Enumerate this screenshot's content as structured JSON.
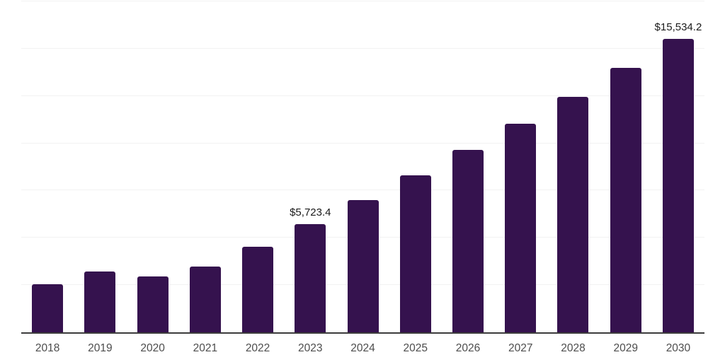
{
  "chart_data": {
    "type": "bar",
    "categories": [
      "2018",
      "2019",
      "2020",
      "2021",
      "2022",
      "2023",
      "2024",
      "2025",
      "2026",
      "2027",
      "2028",
      "2029",
      "2030"
    ],
    "values": [
      2550,
      3210,
      2960,
      3490,
      4520,
      5723.4,
      6990,
      8300,
      9660,
      11030,
      12450,
      13970,
      15534.2
    ],
    "title": "",
    "xlabel": "",
    "ylabel": "",
    "ylim": [
      0,
      17500
    ],
    "grid_interval": 2500,
    "grid": true,
    "legend": false,
    "annotations": [
      {
        "category": "2023",
        "text": "$5,723.4"
      },
      {
        "category": "2030",
        "text": "$15,534.2"
      }
    ]
  },
  "colors": {
    "bar": "#35124E",
    "gridline": "#F2F2F2",
    "axis": "#3C3C3C",
    "x_label": "#4D4D4D",
    "value_label": "#1A1A1A",
    "background": "#FFFFFF"
  }
}
